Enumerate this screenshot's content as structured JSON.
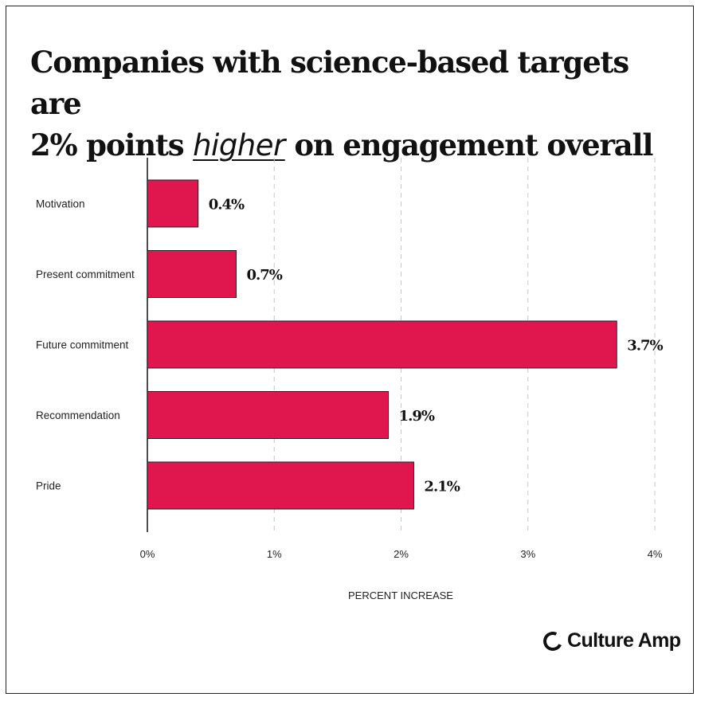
{
  "title": {
    "line1": "Companies with science-based targets are",
    "line2_pre": "2% points ",
    "line2_highlight": "higher",
    "line2_post": " on engagement overall"
  },
  "chart_data": {
    "type": "bar",
    "orientation": "horizontal",
    "categories": [
      "Motivation",
      "Present commitment",
      "Future commitment",
      "Recommendation",
      "Pride"
    ],
    "values": [
      0.4,
      0.7,
      3.7,
      1.9,
      2.1
    ],
    "value_labels": [
      "0.4%",
      "0.7%",
      "3.7%",
      "1.9%",
      "2.1%"
    ],
    "xlim": [
      0,
      4
    ],
    "x_ticks": [
      "0%",
      "1%",
      "2%",
      "3%",
      "4%"
    ],
    "xlabel": "PERCENT INCREASE",
    "ylabel": "",
    "grid": "vertical dashed",
    "bar_color": "#e0174f"
  },
  "brand": {
    "name": "Culture Amp"
  }
}
